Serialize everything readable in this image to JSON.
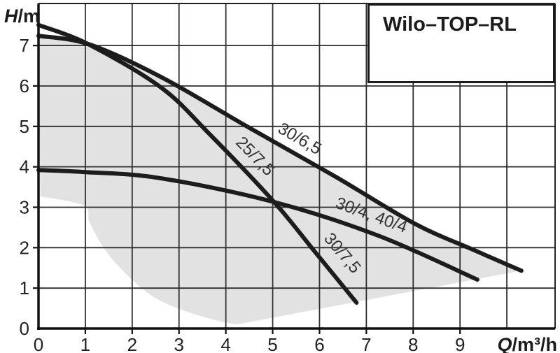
{
  "title_box": {
    "label": "Wilo–TOP–RL"
  },
  "colors": {
    "curve": "#1c1c1c",
    "grid": "#2e2e2e",
    "border": "#222222",
    "axis": "#111111",
    "field": "#e2e2e2",
    "tick_text": "#222222",
    "curve_label_text": "#333333",
    "background": "#ffffff"
  },
  "chart_data": {
    "type": "line",
    "title": "Wilo–TOP–RL",
    "xlabel": "Q/m³/h",
    "ylabel": "H/m",
    "xlim": [
      0,
      11.03
    ],
    "ylim": [
      0,
      8.04
    ],
    "grid": true,
    "axes": {
      "x": {
        "label_italic": "Q",
        "label_rest": "/m³/h",
        "ticks": [
          0,
          1,
          2,
          3,
          4,
          5,
          6,
          7,
          8,
          9
        ],
        "gridline_count": 10
      },
      "y": {
        "label_italic": "H",
        "label_rest": "/m",
        "ticks": [
          0,
          1,
          2,
          3,
          4,
          5,
          6,
          7
        ],
        "gridline_count": 7
      }
    },
    "series": [
      {
        "name": "30/6,5",
        "points": [
          [
            0,
            7.24
          ],
          [
            1.08,
            7.03
          ],
          [
            2.62,
            6.22
          ],
          [
            4.48,
            4.98
          ],
          [
            6.35,
            3.75
          ],
          [
            8.04,
            2.59
          ],
          [
            9.3,
            1.94
          ],
          [
            10.31,
            1.43
          ]
        ]
      },
      {
        "name": "25/7,5 / 30/7,5",
        "points": [
          [
            0,
            7.51
          ],
          [
            1.07,
            7.03
          ],
          [
            2.62,
            5.96
          ],
          [
            3.66,
            4.8
          ],
          [
            5.03,
            3.13
          ],
          [
            5.9,
            1.9
          ],
          [
            6.79,
            0.64
          ]
        ]
      },
      {
        "name": "30/4, 40/4",
        "points": [
          [
            0,
            3.92
          ],
          [
            1.0,
            3.87
          ],
          [
            2.6,
            3.72
          ],
          [
            5.03,
            3.13
          ],
          [
            7.25,
            2.3
          ],
          [
            9.37,
            1.21
          ]
        ]
      }
    ],
    "curve_labels": [
      {
        "text": "30/6,5",
        "q": 5.52,
        "h": 4.58,
        "angle": 30
      },
      {
        "text": "25/7,5",
        "q": 4.54,
        "h": 4.17,
        "angle": 46
      },
      {
        "text": "30/4, 40/4",
        "q": 7.07,
        "h": 2.68,
        "angle": 20
      },
      {
        "text": "30/7,5",
        "q": 6.4,
        "h": 1.78,
        "angle": 50
      }
    ],
    "operating_field": {
      "top_boundary": [
        [
          0,
          7.24
        ],
        [
          1.08,
          7.03
        ],
        [
          2.62,
          6.22
        ],
        [
          4.48,
          4.98
        ],
        [
          6.35,
          3.75
        ],
        [
          8.04,
          2.59
        ],
        [
          9.3,
          1.94
        ],
        [
          10.31,
          1.43
        ]
      ],
      "bottom_boundary_right_to_left": [
        [
          4.23,
          0.1
        ],
        [
          3.77,
          0.21
        ],
        [
          3.02,
          0.48
        ],
        [
          2.42,
          0.81
        ],
        [
          1.87,
          1.35
        ],
        [
          1.42,
          1.95
        ],
        [
          1.09,
          2.63
        ],
        [
          0.97,
          3.04
        ],
        [
          0.04,
          3.27
        ]
      ]
    }
  }
}
